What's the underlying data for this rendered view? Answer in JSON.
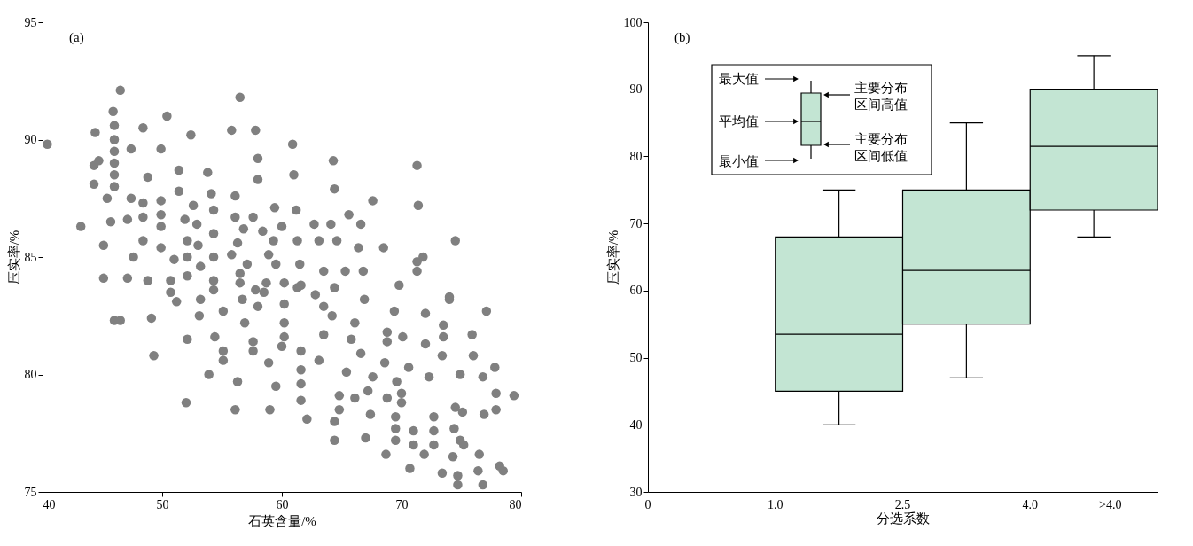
{
  "chart_data": [
    {
      "type": "scatter",
      "xlabel": "石英含量/%",
      "ylabel": "压实率/%",
      "annotations": [
        "(a)"
      ],
      "marker": "circle",
      "xlim": [
        40,
        80
      ],
      "xticks": [
        40,
        50,
        60,
        70,
        80
      ],
      "ylim": [
        75,
        95
      ],
      "yticks": [
        75,
        80,
        85,
        90,
        95
      ],
      "series": [
        {
          "color": "#808080",
          "x": [
            46.5,
            40.4,
            44.4,
            45.9,
            46,
            46,
            46,
            46,
            46,
            46,
            48.4,
            50.4,
            52.4,
            56.5,
            55.8,
            57.8,
            47.4,
            49.9,
            44.7,
            44.3,
            48.8,
            51.4,
            53.8,
            58.0,
            58.0,
            44.3,
            45.4,
            47.4,
            48.4,
            51.4,
            49.9,
            49.9,
            49.9,
            54.1,
            56.1,
            43.2,
            45.7,
            47.1,
            48.4,
            51.9,
            52.6,
            52.9,
            54.3,
            54.3,
            54.3,
            54.3,
            54.3,
            56.1,
            57.6,
            56.8,
            45.1,
            48.4,
            49.9,
            47.6,
            51.0,
            52.1,
            53.2,
            52.1,
            53.0,
            55.8,
            56.3,
            45.1,
            47.1,
            48.8,
            50.7,
            50.7,
            52.1,
            56.5,
            56.5,
            46.0,
            46.5,
            49.1,
            51.2,
            53.2,
            53.1,
            55.1,
            56.7,
            56.9,
            58.0,
            58.5,
            52.1,
            54.4,
            49.3,
            55.1,
            55.1,
            57.6,
            57.6,
            58.9,
            53.9,
            56.3,
            59.5,
            52.0,
            56.1,
            59.0,
            62.1,
            61.6,
            61.6,
            61.6,
            64.4,
            64.4,
            64.8,
            64.8,
            66.1,
            67.2,
            67.0,
            67.4,
            68.8,
            70.0,
            70.0,
            69.5,
            69.5,
            69.5,
            68.7,
            70.7,
            71.0,
            71.0,
            71.9,
            72.7,
            72.7,
            72.7,
            74.5,
            75.1,
            74.4,
            74.9,
            75.2,
            74.3,
            73.4,
            74.7,
            74.7,
            76.5,
            76.4,
            76.8,
            78.2,
            78.5,
            76.9,
            77.9,
            77.9,
            76.8,
            77.8,
            76.0,
            74.9,
            72.3,
            70.6,
            69.6,
            68.6,
            67.6,
            66.6,
            65.4,
            63.1,
            61.6,
            60.0,
            63.5,
            65.8,
            68.8,
            68.8,
            70.1,
            72.0,
            73.5,
            73.4,
            75.9,
            77.1,
            74.0,
            73.5,
            72.0,
            69.4,
            66.9,
            66.1,
            64.2,
            62.8,
            63.5,
            61.6,
            60.2,
            60.2,
            60.2,
            60.2,
            66.8,
            69.8,
            71.3,
            60.9,
            64.3,
            71.3,
            61.0,
            64.4,
            67.6,
            71.4,
            59.4,
            61.2,
            60.0,
            62.7,
            64.1,
            65.6,
            66.6,
            74.5,
            61.3,
            63.1,
            64.6,
            66.4,
            68.5,
            59.3,
            71.3,
            71.8,
            65.3,
            63.5,
            61.5,
            59.5,
            64.4,
            61.3,
            74.0,
            58.4,
            58.9,
            57.1,
            58.7,
            57.8,
            79.4
          ],
          "values": [
            92.1,
            89.8,
            90.3,
            91.2,
            90.6,
            90.0,
            89.5,
            89.0,
            88.5,
            88.0,
            90.5,
            91.0,
            90.2,
            91.8,
            90.4,
            90.4,
            89.6,
            89.6,
            89.1,
            88.9,
            88.4,
            88.7,
            88.6,
            89.2,
            88.3,
            88.1,
            87.5,
            87.5,
            87.3,
            87.8,
            87.4,
            86.8,
            86.3,
            87.7,
            87.6,
            86.3,
            86.5,
            86.6,
            86.7,
            86.6,
            87.2,
            86.4,
            87.0,
            86.0,
            85.0,
            84.0,
            83.6,
            86.7,
            86.7,
            86.2,
            85.5,
            85.7,
            85.4,
            85.0,
            84.9,
            85.0,
            84.6,
            85.7,
            85.5,
            85.1,
            85.6,
            84.1,
            84.1,
            84.0,
            84.0,
            83.5,
            84.2,
            84.3,
            83.9,
            82.3,
            82.3,
            82.4,
            83.1,
            83.2,
            82.5,
            82.7,
            83.2,
            82.2,
            82.9,
            83.5,
            81.5,
            81.6,
            80.8,
            81.0,
            80.6,
            81.4,
            81.0,
            80.5,
            80.0,
            79.7,
            79.5,
            78.8,
            78.5,
            78.5,
            78.1,
            78.9,
            80.2,
            79.6,
            77.2,
            78.0,
            79.1,
            78.5,
            79.0,
            79.3,
            77.3,
            78.3,
            79.0,
            79.2,
            78.8,
            78.2,
            77.7,
            77.2,
            76.6,
            76.0,
            77.6,
            77.0,
            76.6,
            78.2,
            77.6,
            77.0,
            78.6,
            78.4,
            77.7,
            77.2,
            77.0,
            76.5,
            75.8,
            75.7,
            75.3,
            76.6,
            75.9,
            75.3,
            76.1,
            75.9,
            78.3,
            78.5,
            79.2,
            79.9,
            80.3,
            80.8,
            80.0,
            79.9,
            80.3,
            79.7,
            80.5,
            79.9,
            80.9,
            80.1,
            80.6,
            81.0,
            81.2,
            81.7,
            81.5,
            81.8,
            81.4,
            81.6,
            81.3,
            81.6,
            80.8,
            81.7,
            82.7,
            83.2,
            82.1,
            82.6,
            82.7,
            83.2,
            82.2,
            82.5,
            83.4,
            82.9,
            83.8,
            83.9,
            83.0,
            82.2,
            81.6,
            84.4,
            83.8,
            84.4,
            89.8,
            89.1,
            88.9,
            88.5,
            87.9,
            87.4,
            87.2,
            87.1,
            87.0,
            86.3,
            86.4,
            86.4,
            86.8,
            86.4,
            85.7,
            85.7,
            85.7,
            85.7,
            85.4,
            85.4,
            85.7,
            84.8,
            85.0,
            84.4,
            84.4,
            84.7,
            84.7,
            83.7,
            83.7,
            83.3,
            86.1,
            85.1,
            84.7,
            83.9,
            83.6,
            79.1
          ]
        }
      ]
    },
    {
      "type": "box",
      "xlabel": "分选系数",
      "ylabel": "压实率/%",
      "annotations": [
        "(b)",
        "最大值",
        "主要分布区间高值",
        "平均值",
        "主要分布区间低值",
        "最小值",
        "0",
        "1.0",
        "2.5",
        "4.0",
        ">4.0"
      ],
      "categories": [
        null,
        null,
        null,
        null
      ],
      "ylim": [
        30,
        100
      ],
      "yticks": [
        30,
        40,
        50,
        60,
        70,
        80,
        90,
        100
      ],
      "series": [
        {
          "color": "#c3e5d3",
          "boxes": [
            null,
            {
              "low": 40,
              "q1": 45,
              "median": 53.5,
              "q3": 68,
              "high": 75
            },
            {
              "low": 47,
              "q1": 55,
              "median": 63,
              "q3": 75,
              "high": 85
            },
            {
              "low": 68,
              "q1": 72,
              "median": 81.5,
              "q3": 90,
              "high": 95
            }
          ]
        }
      ]
    }
  ]
}
